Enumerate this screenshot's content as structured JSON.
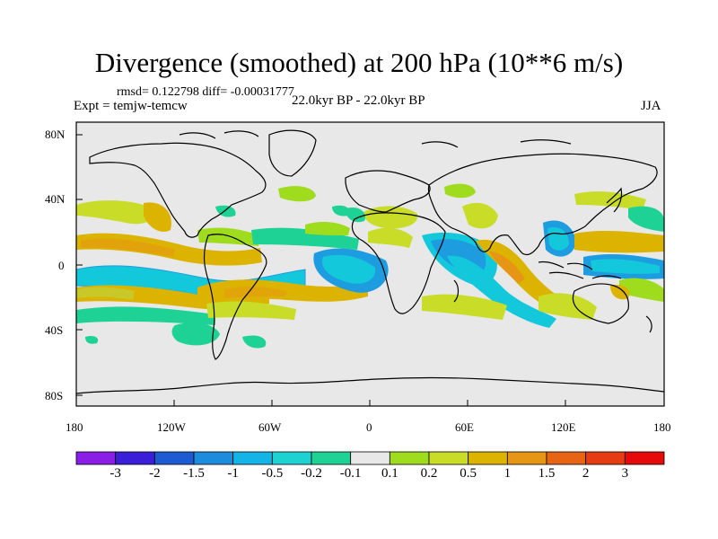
{
  "title": "Divergence (smoothed) at 200 hPa (10**6 m/s)",
  "stats": "rmsd= 0.122798 diff= -0.00031777",
  "experiment": "Expt = temjw-temcw",
  "period": "22.0kyr BP - 22.0kyr BP",
  "season": "JJA",
  "y_ticks": [
    "80N",
    "40N",
    "0",
    "40S",
    "80S"
  ],
  "x_ticks": [
    "180",
    "120W",
    "60W",
    "0",
    "60E",
    "120E",
    "180"
  ],
  "colorbar": {
    "labels": [
      "-3",
      "-2",
      "-1.5",
      "-1",
      "-0.5",
      "-0.2",
      "-0.1",
      "0.1",
      "0.2",
      "0.5",
      "1",
      "1.5",
      "2",
      "3"
    ],
    "colors": [
      "#8b1ee6",
      "#3a1ed8",
      "#1e5ad2",
      "#1e8cdc",
      "#14b4e6",
      "#1ed2d2",
      "#1ed296",
      "#e8e8e8",
      "#a0dc1e",
      "#c8dc28",
      "#dcb400",
      "#e69614",
      "#e66414",
      "#e63c14",
      "#e60a0a"
    ]
  },
  "colors": {
    "background": "#e8e8e8",
    "coast": "#000000",
    "pos_weak": "#a0dc1e",
    "pos_mid": "#c8c828",
    "pos_strong": "#dcb400",
    "neg_weak": "#1ed296",
    "neg_mid": "#14c8dc",
    "neg_strong": "#1e9ce0"
  }
}
